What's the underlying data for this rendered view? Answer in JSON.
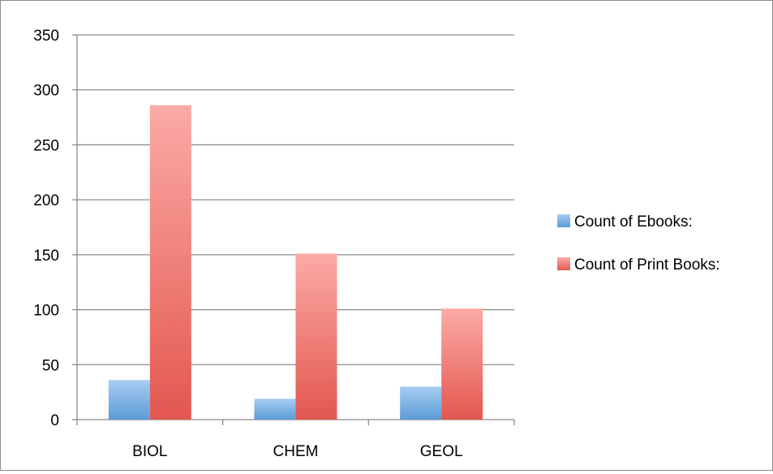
{
  "chart_data": {
    "type": "bar",
    "categories": [
      "BIOL",
      "CHEM",
      "GEOL"
    ],
    "series": [
      {
        "name": "Count of Ebooks:",
        "values": [
          36,
          19,
          30
        ],
        "color": "#5b9bd5"
      },
      {
        "name": "Count of Print Books:",
        "values": [
          286,
          151,
          101
        ],
        "color": "#e8605a"
      }
    ],
    "ylim": [
      0,
      350
    ],
    "yticks": [
      0,
      50,
      100,
      150,
      200,
      250,
      300,
      350
    ],
    "grid": true,
    "legend_position": "right"
  }
}
